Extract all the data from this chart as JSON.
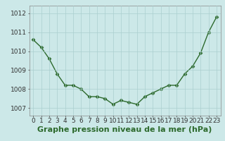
{
  "x": [
    0,
    1,
    2,
    3,
    4,
    5,
    6,
    7,
    8,
    9,
    10,
    11,
    12,
    13,
    14,
    15,
    16,
    17,
    18,
    19,
    20,
    21,
    22,
    23
  ],
  "y": [
    1010.6,
    1010.2,
    1009.6,
    1008.8,
    1008.2,
    1008.2,
    1008.0,
    1007.6,
    1007.6,
    1007.5,
    1007.2,
    1007.4,
    1007.3,
    1007.2,
    1007.6,
    1007.8,
    1008.0,
    1008.2,
    1008.2,
    1008.8,
    1009.2,
    1009.9,
    1011.0,
    1011.8
  ],
  "line_color": "#2d6a2d",
  "marker": "D",
  "marker_size": 2.5,
  "bg_color": "#cce8e8",
  "grid_color": "#aacfcf",
  "xlabel": "Graphe pression niveau de la mer (hPa)",
  "xlabel_fontsize": 8,
  "yticks": [
    1007,
    1008,
    1009,
    1010,
    1011,
    1012
  ],
  "xticks": [
    0,
    1,
    2,
    3,
    4,
    5,
    6,
    7,
    8,
    9,
    10,
    11,
    12,
    13,
    14,
    15,
    16,
    17,
    18,
    19,
    20,
    21,
    22,
    23
  ],
  "ylim": [
    1006.6,
    1012.4
  ],
  "xlim": [
    -0.5,
    23.5
  ],
  "tick_fontsize": 6.5,
  "linewidth": 1.0
}
